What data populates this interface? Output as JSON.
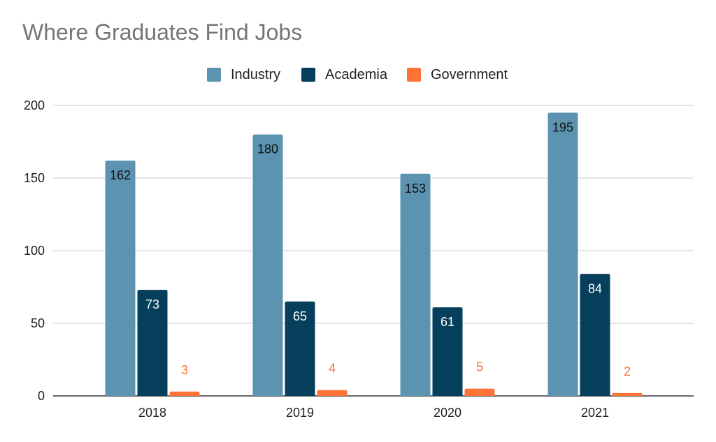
{
  "chart_data": {
    "type": "bar",
    "title": "Where Graduates Find Jobs",
    "categories": [
      "2018",
      "2019",
      "2020",
      "2021"
    ],
    "series": [
      {
        "name": "Industry",
        "values": [
          162,
          180,
          153,
          195
        ],
        "color": "#5b93b0",
        "label_color": "#111111"
      },
      {
        "name": "Academia",
        "values": [
          73,
          65,
          61,
          84
        ],
        "color": "#063f5b",
        "label_color": "#ffffff"
      },
      {
        "name": "Government",
        "values": [
          3,
          4,
          5,
          2
        ],
        "color": "#ff7235",
        "label_color": "#ff7235"
      }
    ],
    "ylim": [
      0,
      200
    ],
    "yticks": [
      "0",
      "50",
      "100",
      "150",
      "200"
    ],
    "xlabel": "",
    "ylabel": "",
    "grid": true,
    "legend_position": "top"
  }
}
